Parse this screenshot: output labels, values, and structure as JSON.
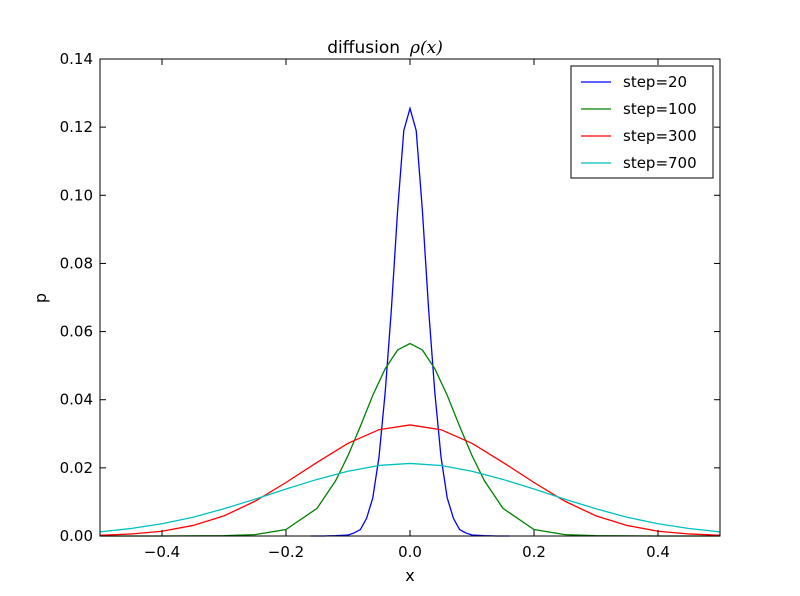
{
  "chart_data": {
    "type": "line",
    "title": "diffusion",
    "title_math": "ρ(x)",
    "xlabel": "x",
    "ylabel": "p",
    "xlim": [
      -0.5,
      0.5
    ],
    "ylim": [
      0,
      0.14
    ],
    "xticks": [
      -0.4,
      -0.2,
      0.0,
      0.2,
      0.4
    ],
    "xtick_labels": [
      "−0.4",
      "−0.2",
      "0.0",
      "0.2",
      "0.4"
    ],
    "yticks": [
      0.0,
      0.02,
      0.04,
      0.06,
      0.08,
      0.1,
      0.12,
      0.14
    ],
    "ytick_labels": [
      "0.00",
      "0.02",
      "0.04",
      "0.06",
      "0.08",
      "0.10",
      "0.12",
      "0.14"
    ],
    "grid": false,
    "legend_position": "top-right",
    "series": [
      {
        "name": "step=20",
        "color": "#0000ff",
        "x": [
          -0.16,
          -0.14,
          -0.12,
          -0.1,
          -0.09,
          -0.08,
          -0.07,
          -0.06,
          -0.05,
          -0.04,
          -0.03,
          -0.02,
          -0.01,
          0.0,
          0.01,
          0.02,
          0.03,
          0.04,
          0.05,
          0.06,
          0.07,
          0.08,
          0.09,
          0.1,
          0.12,
          0.14,
          0.16
        ],
        "y": [
          0.0,
          0.0,
          0.0001,
          0.0003,
          0.0009,
          0.0019,
          0.0052,
          0.0112,
          0.0232,
          0.0422,
          0.0666,
          0.0955,
          0.119,
          0.1255,
          0.119,
          0.0955,
          0.0666,
          0.0422,
          0.0232,
          0.0112,
          0.0052,
          0.0019,
          0.0009,
          0.0003,
          0.0001,
          0.0,
          0.0
        ]
      },
      {
        "name": "step=100",
        "color": "#008000",
        "x": [
          -0.5,
          -0.4,
          -0.3,
          -0.25,
          -0.2,
          -0.15,
          -0.12,
          -0.1,
          -0.08,
          -0.06,
          -0.04,
          -0.02,
          0.0,
          0.02,
          0.04,
          0.06,
          0.08,
          0.1,
          0.12,
          0.15,
          0.2,
          0.25,
          0.3,
          0.4,
          0.5
        ],
        "y": [
          0.0,
          0.0,
          0.0001,
          0.0004,
          0.0019,
          0.0081,
          0.0162,
          0.0236,
          0.0322,
          0.0413,
          0.0491,
          0.0546,
          0.0565,
          0.0546,
          0.0491,
          0.0413,
          0.0322,
          0.0236,
          0.0162,
          0.0081,
          0.0019,
          0.0004,
          0.0001,
          0.0,
          0.0
        ]
      },
      {
        "name": "step=300",
        "color": "#ff0000",
        "x": [
          -0.5,
          -0.45,
          -0.4,
          -0.35,
          -0.3,
          -0.25,
          -0.2,
          -0.15,
          -0.1,
          -0.05,
          0.0,
          0.05,
          0.1,
          0.15,
          0.2,
          0.25,
          0.3,
          0.35,
          0.4,
          0.45,
          0.5
        ],
        "y": [
          0.0002,
          0.0006,
          0.0014,
          0.0031,
          0.0059,
          0.0102,
          0.0157,
          0.0216,
          0.0272,
          0.0312,
          0.0326,
          0.0312,
          0.0272,
          0.0216,
          0.0157,
          0.0102,
          0.0059,
          0.0031,
          0.0014,
          0.0006,
          0.0002
        ]
      },
      {
        "name": "step=700",
        "color": "#00bfbf",
        "x": [
          -0.5,
          -0.45,
          -0.4,
          -0.35,
          -0.3,
          -0.25,
          -0.2,
          -0.15,
          -0.1,
          -0.05,
          0.0,
          0.05,
          0.1,
          0.15,
          0.2,
          0.25,
          0.3,
          0.35,
          0.4,
          0.45,
          0.5
        ],
        "y": [
          0.0012,
          0.0022,
          0.0036,
          0.0055,
          0.008,
          0.0108,
          0.0138,
          0.0166,
          0.019,
          0.0207,
          0.0213,
          0.0207,
          0.019,
          0.0166,
          0.0138,
          0.0108,
          0.008,
          0.0055,
          0.0036,
          0.0022,
          0.0012
        ]
      }
    ]
  }
}
